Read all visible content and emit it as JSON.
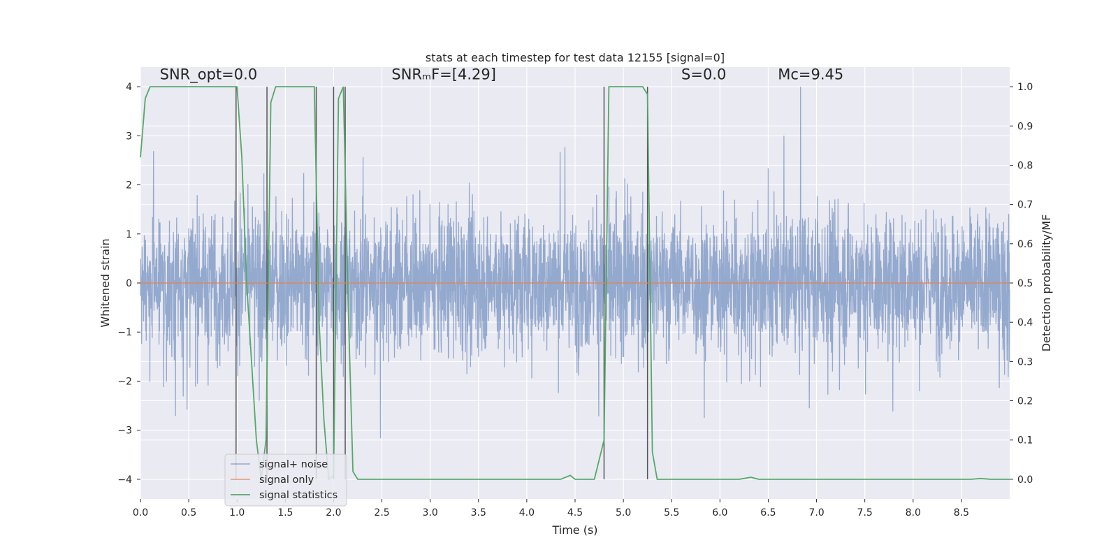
{
  "chart_data": {
    "type": "line",
    "title": "stats at each timestep for test data 12155 [signal=0]",
    "xlabel": "Time (s)",
    "ylabel": "Whitened strain",
    "y2label": "Detection probability/MF",
    "xlim": [
      0,
      9.0
    ],
    "ylim": [
      -4.4,
      4.4
    ],
    "y2lim": [
      -0.05,
      1.05
    ],
    "x_ticks": [
      0.0,
      0.5,
      1.0,
      1.5,
      2.0,
      2.5,
      3.0,
      3.5,
      4.0,
      4.5,
      5.0,
      5.5,
      6.0,
      6.5,
      7.0,
      7.5,
      8.0,
      8.5
    ],
    "x_tick_labels": [
      "0.0",
      "0.5",
      "1.0",
      "1.5",
      "2.0",
      "2.5",
      "3.0",
      "3.5",
      "4.0",
      "4.5",
      "5.0",
      "5.5",
      "6.0",
      "6.5",
      "7.0",
      "7.5",
      "8.0",
      "8.5"
    ],
    "y_ticks": [
      4,
      3,
      2,
      1,
      0,
      -1,
      -2,
      -3,
      -4
    ],
    "y_tick_labels": [
      "4",
      "3",
      "2",
      "1",
      "0",
      "−1",
      "−2",
      "−3",
      "−4"
    ],
    "y2_ticks": [
      1.0,
      0.9,
      0.8,
      0.7,
      0.6,
      0.5,
      0.4,
      0.3,
      0.2,
      0.1,
      0.0
    ],
    "y2_tick_labels": [
      "1.0",
      "0.9",
      "0.8",
      "0.7",
      "0.6",
      "0.5",
      "0.4",
      "0.3",
      "0.2",
      "0.1",
      "0.0"
    ],
    "grid": true,
    "legend_position": "lower-left",
    "annotations": [
      {
        "name": "snr-opt",
        "text": "SNR_opt=0.0",
        "x": 0.2,
        "y": 4.15
      },
      {
        "name": "snr-mf",
        "text": "SNRₘF=[4.29]",
        "x": 2.6,
        "y": 4.15
      },
      {
        "name": "s-stat",
        "text": "S=0.0",
        "x": 5.6,
        "y": 4.15
      },
      {
        "name": "mc",
        "text": "Mc=9.45",
        "x": 6.6,
        "y": 4.15
      }
    ],
    "series": [
      {
        "name": "signal+ noise",
        "color": "#4c72b0",
        "style": "noise",
        "x_range": [
          0,
          9.0
        ],
        "envelope_typical": 2.4,
        "envelope_peak": 4.0
      },
      {
        "name": "signal only",
        "color": "#dd8452",
        "style": "flat",
        "value": 0.0
      },
      {
        "name": "signal statistics",
        "color": "#55a868",
        "style": "line",
        "axis": "right",
        "x": [
          0.0,
          0.05,
          0.1,
          0.15,
          0.2,
          0.3,
          0.5,
          0.7,
          0.9,
          1.0,
          1.05,
          1.1,
          1.2,
          1.25,
          1.3,
          1.35,
          1.4,
          1.5,
          1.6,
          1.7,
          1.8,
          1.85,
          1.9,
          1.95,
          2.0,
          2.05,
          2.1,
          2.15,
          2.2,
          2.25,
          2.3,
          2.4,
          3.0,
          4.0,
          4.35,
          4.45,
          4.5,
          4.7,
          4.8,
          4.85,
          4.9,
          5.0,
          5.1,
          5.2,
          5.25,
          5.3,
          5.35,
          5.5,
          6.0,
          6.2,
          6.32,
          6.4,
          7.0,
          8.0,
          8.6,
          8.7,
          8.8,
          9.0
        ],
        "y": [
          0.82,
          0.97,
          1.0,
          1.0,
          1.0,
          1.0,
          1.0,
          1.0,
          1.0,
          1.0,
          0.82,
          0.5,
          0.1,
          0.0,
          0.1,
          0.96,
          1.0,
          1.0,
          1.0,
          1.0,
          1.0,
          0.4,
          0.15,
          0.0,
          0.01,
          0.97,
          1.0,
          0.45,
          0.02,
          0.0,
          0.0,
          0.0,
          0.0,
          0.0,
          0.0,
          0.01,
          0.0,
          0.0,
          0.1,
          1.0,
          1.0,
          1.0,
          1.0,
          1.0,
          0.98,
          0.07,
          0.0,
          0.0,
          0.0,
          0.0,
          0.005,
          0.0,
          0.0,
          0.0,
          0.0,
          0.002,
          0.0,
          0.0
        ]
      }
    ],
    "vertical_lines": {
      "color": "#555555",
      "x": [
        0.99,
        1.31,
        1.82,
        2.0,
        2.12,
        4.8,
        5.25
      ],
      "y_top": 4.0,
      "y_bottom": -4.0
    }
  },
  "legend": {
    "items": [
      {
        "label": "signal+ noise",
        "color": "#4c72b0"
      },
      {
        "label": "signal only",
        "color": "#dd8452"
      },
      {
        "label": "signal statistics",
        "color": "#55a868"
      }
    ]
  }
}
